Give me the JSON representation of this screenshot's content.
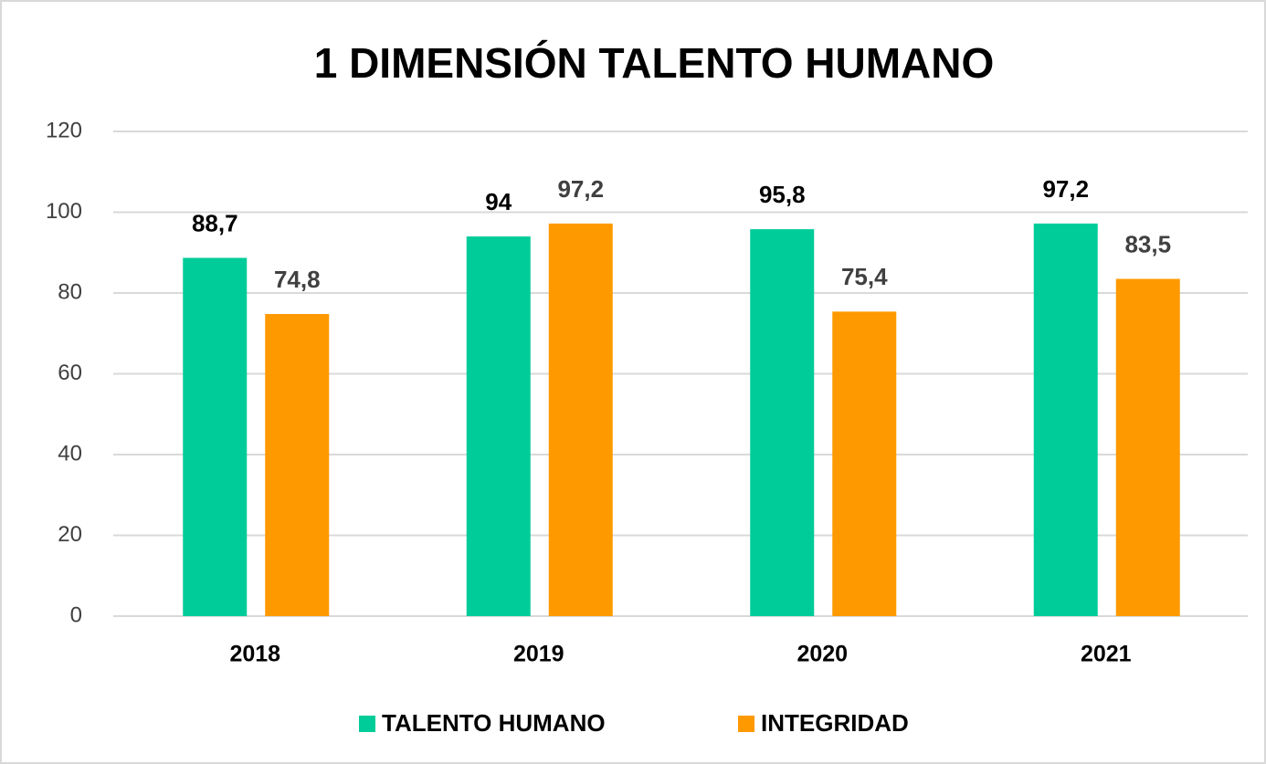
{
  "chart_data": {
    "type": "bar",
    "title": "1 DIMENSIÓN TALENTO HUMANO",
    "categories": [
      "2018",
      "2019",
      "2020",
      "2021"
    ],
    "series": [
      {
        "name": "TALENTO HUMANO",
        "color": "#00cc99",
        "values": [
          88.7,
          94,
          95.8,
          97.2
        ],
        "value_labels": [
          "88,7",
          "94",
          "95,8",
          "97,2"
        ]
      },
      {
        "name": "INTEGRIDAD",
        "color": "#ff9900",
        "values": [
          74.8,
          97.2,
          75.4,
          83.5
        ],
        "value_labels": [
          "74,8",
          "97,2",
          "75,4",
          "83,5"
        ]
      }
    ],
    "ylim": [
      0,
      120
    ],
    "yticks": [
      0,
      20,
      40,
      60,
      80,
      100,
      120
    ],
    "grid": true,
    "legend": "bottom"
  }
}
